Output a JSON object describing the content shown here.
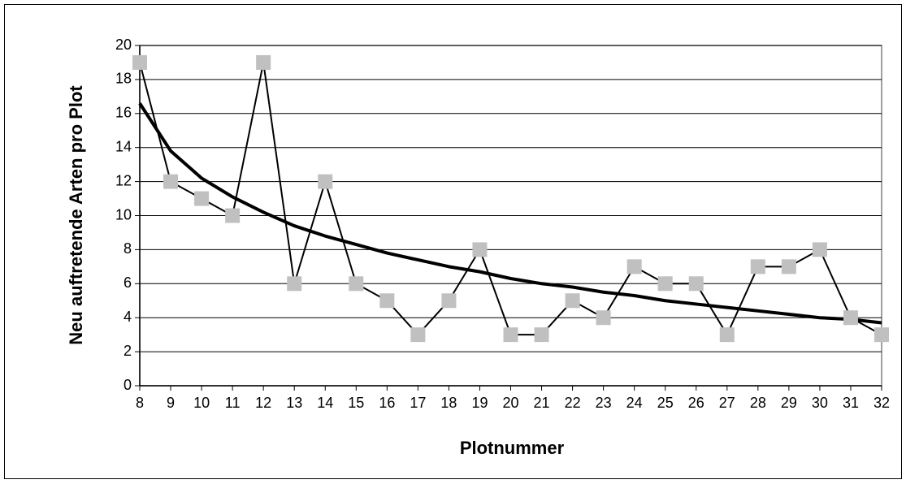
{
  "chart_data": {
    "type": "line",
    "x_label": "Plotnummer",
    "y_label": "Neu auftretende Arten pro Plot",
    "x": [
      8,
      9,
      10,
      11,
      12,
      13,
      14,
      15,
      16,
      17,
      18,
      19,
      20,
      21,
      22,
      23,
      24,
      25,
      26,
      27,
      28,
      29,
      30,
      31,
      32
    ],
    "series": [
      {
        "color": "#c0c0c0",
        "marker": "square",
        "values": [
          19,
          12,
          11,
          10,
          19,
          6,
          12,
          6,
          5,
          3,
          5,
          8,
          3,
          3,
          5,
          4,
          7,
          6,
          6,
          3,
          7,
          7,
          8,
          4,
          3
        ]
      },
      {
        "color": "#000000",
        "marker": "none",
        "values": [
          16.6,
          13.8,
          12.2,
          11.1,
          10.2,
          9.4,
          8.8,
          8.3,
          7.8,
          7.4,
          7.0,
          6.7,
          6.3,
          6.0,
          5.8,
          5.5,
          5.3,
          5.0,
          4.8,
          4.6,
          4.4,
          4.2,
          4.0,
          3.9,
          3.7
        ]
      }
    ],
    "xlim": [
      8,
      32
    ],
    "xticks": [
      8,
      9,
      10,
      11,
      12,
      13,
      14,
      15,
      16,
      17,
      18,
      19,
      20,
      21,
      22,
      23,
      24,
      25,
      26,
      27,
      28,
      29,
      30,
      31,
      32
    ],
    "ylim": [
      0,
      20
    ],
    "yticks": [
      0,
      2,
      4,
      6,
      8,
      10,
      12,
      14,
      16,
      18,
      20
    ],
    "grid": true
  }
}
